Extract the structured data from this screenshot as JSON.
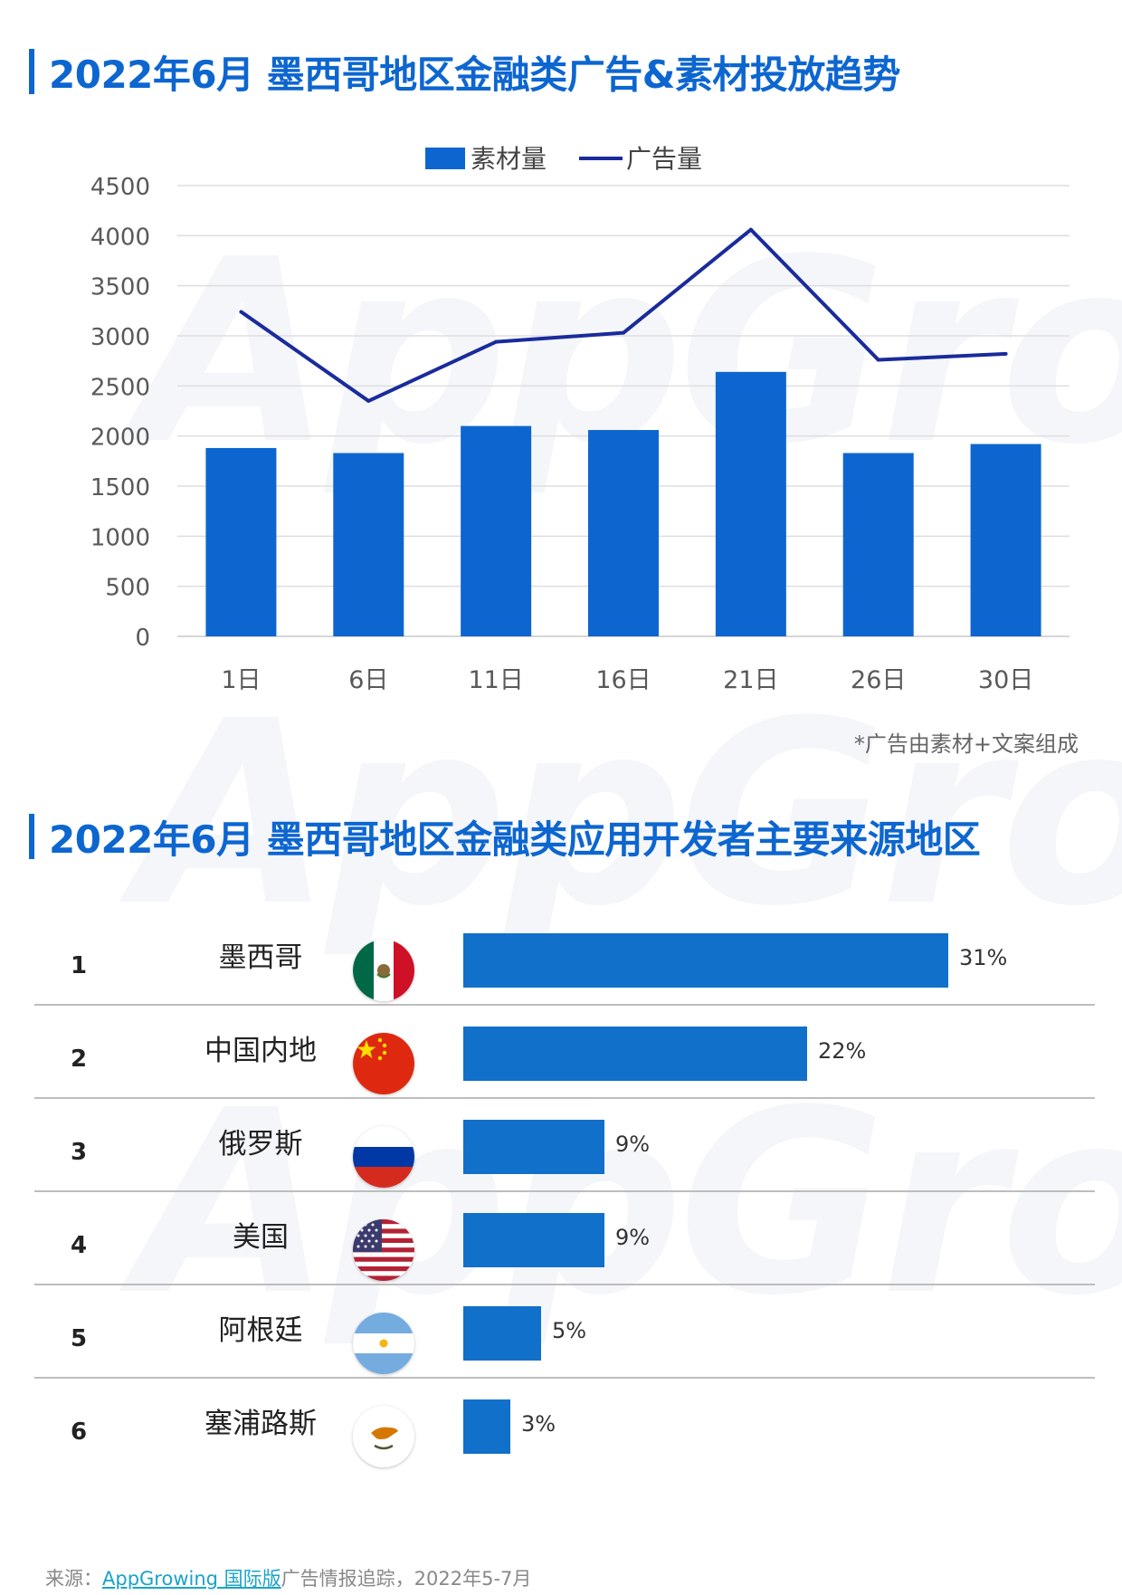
{
  "titles": {
    "trend": "2022年6月 墨西哥地区金融类广告&素材投放趋势",
    "developers": "2022年6月 墨西哥地区金融类应用开发者主要来源地区"
  },
  "watermark": "AppGrowing",
  "chart_data": [
    {
      "type": "bar",
      "title": "2022年6月 墨西哥地区金融类广告&素材投放趋势",
      "categories": [
        "1日",
        "6日",
        "11日",
        "16日",
        "21日",
        "26日",
        "30日"
      ],
      "series": [
        {
          "name": "素材量",
          "type": "bar",
          "color": "#0d66d0",
          "values": [
            1880,
            1830,
            2100,
            2060,
            2640,
            1830,
            1920
          ]
        },
        {
          "name": "广告量",
          "type": "line",
          "color": "#1a2b9c",
          "values": [
            3240,
            2350,
            2940,
            3030,
            4060,
            2760,
            2820
          ]
        }
      ],
      "ylim": [
        0,
        4500
      ],
      "yticks": [
        0,
        500,
        1000,
        1500,
        2000,
        2500,
        3000,
        3500,
        4000,
        4500
      ],
      "legend": "top-center",
      "grid": true,
      "note": "*广告由素材+文案组成"
    },
    {
      "type": "bar",
      "orientation": "horizontal",
      "title": "2022年6月 墨西哥地区金融类应用开发者主要来源地区",
      "categories": [
        "墨西哥",
        "中国内地",
        "俄罗斯",
        "美国",
        "阿根廷",
        "塞浦路斯"
      ],
      "values": [
        31,
        22,
        9,
        9,
        5,
        3
      ],
      "unit": "%",
      "color": "#1170c9"
    }
  ],
  "ranking": [
    {
      "rank": "1",
      "region": "墨西哥",
      "flag": "mexico-flag",
      "pct": "31%",
      "value": 31
    },
    {
      "rank": "2",
      "region": "中国内地",
      "flag": "china-flag",
      "pct": "22%",
      "value": 22
    },
    {
      "rank": "3",
      "region": "俄罗斯",
      "flag": "russia-flag",
      "pct": "9%",
      "value": 9
    },
    {
      "rank": "4",
      "region": "美国",
      "flag": "usa-flag",
      "pct": "9%",
      "value": 9
    },
    {
      "rank": "5",
      "region": "阿根廷",
      "flag": "argentina-flag",
      "pct": "5%",
      "value": 5
    },
    {
      "rank": "6",
      "region": "塞浦路斯",
      "flag": "cyprus-flag",
      "pct": "3%",
      "value": 3
    }
  ],
  "source": {
    "prefix": "来源：",
    "link": "AppGrowing 国际版",
    "suffix": "广告情报追踪，2022年5-7月"
  }
}
